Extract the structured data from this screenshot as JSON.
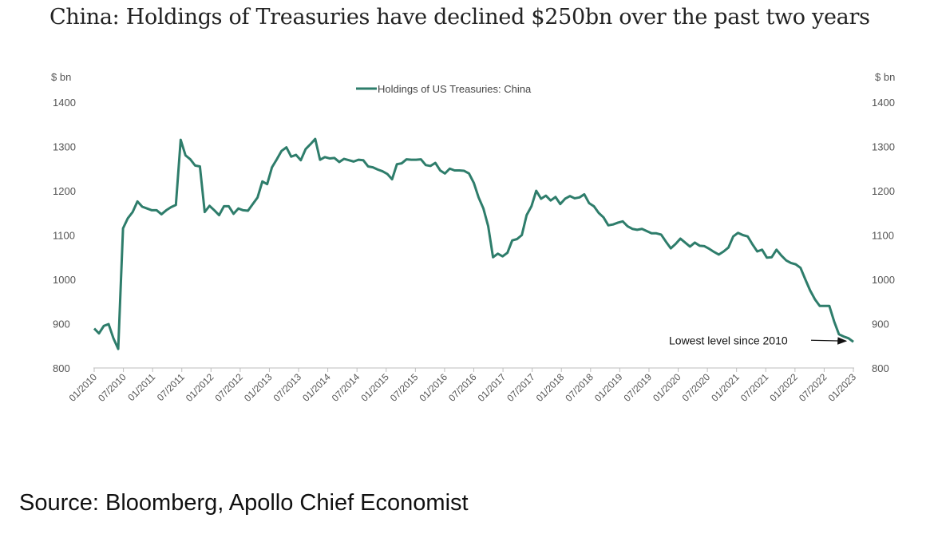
{
  "chart_data": {
    "type": "line",
    "title": "China: Holdings of Treasuries have declined $250bn over the past two years",
    "ylabel_left": "$ bn",
    "ylabel_right": "$ bn",
    "ylim": [
      800,
      1400
    ],
    "yticks": [
      800,
      900,
      1000,
      1100,
      1200,
      1300,
      1400
    ],
    "grid": false,
    "legend_position": "top-center",
    "xlabel": "",
    "x_tick_labels": [
      "01/2010",
      "07/2010",
      "01/2011",
      "07/2011",
      "01/2012",
      "07/2012",
      "01/2013",
      "07/2013",
      "01/2014",
      "07/2014",
      "01/2015",
      "07/2015",
      "01/2016",
      "07/2016",
      "01/2017",
      "07/2017",
      "01/2018",
      "07/2018",
      "01/2019",
      "07/2019",
      "01/2020",
      "07/2020",
      "01/2021",
      "07/2021",
      "01/2022",
      "07/2022",
      "01/2023"
    ],
    "series": [
      {
        "name": "Holdings of US Treasuries: China",
        "color": "#2e7d6b",
        "values": [
          889,
          878,
          895,
          899,
          867,
          843,
          1115,
          1138,
          1152,
          1176,
          1164,
          1160,
          1156,
          1156,
          1147,
          1156,
          1163,
          1168,
          1315,
          1280,
          1271,
          1257,
          1255,
          1152,
          1166,
          1156,
          1145,
          1165,
          1165,
          1148,
          1160,
          1156,
          1155,
          1170,
          1185,
          1221,
          1215,
          1253,
          1271,
          1290,
          1298,
          1277,
          1281,
          1269,
          1294,
          1305,
          1317,
          1270,
          1276,
          1273,
          1274,
          1265,
          1272,
          1269,
          1266,
          1270,
          1269,
          1255,
          1253,
          1248,
          1244,
          1238,
          1226,
          1260,
          1262,
          1271,
          1270,
          1270,
          1271,
          1258,
          1256,
          1263,
          1246,
          1239,
          1250,
          1246,
          1246,
          1245,
          1239,
          1218,
          1185,
          1160,
          1120,
          1050,
          1058,
          1052,
          1060,
          1088,
          1091,
          1100,
          1145,
          1165,
          1200,
          1182,
          1189,
          1178,
          1186,
          1170,
          1182,
          1188,
          1183,
          1185,
          1192,
          1172,
          1165,
          1150,
          1140,
          1122,
          1124,
          1128,
          1131,
          1120,
          1114,
          1112,
          1114,
          1109,
          1104,
          1104,
          1101,
          1085,
          1070,
          1080,
          1092,
          1083,
          1074,
          1083,
          1076,
          1075,
          1069,
          1062,
          1056,
          1063,
          1072,
          1097,
          1105,
          1100,
          1097,
          1079,
          1063,
          1067,
          1049,
          1050,
          1067,
          1054,
          1043,
          1037,
          1034,
          1026,
          1000,
          975,
          955,
          940,
          940,
          940,
          905,
          876,
          871,
          867,
          859
        ]
      }
    ],
    "annotations": [
      {
        "text": "Lowest level since 2010",
        "target": "01/2023",
        "target_value": 859,
        "arrow": true
      }
    ]
  },
  "source": "Source: Bloomberg, Apollo Chief Economist"
}
